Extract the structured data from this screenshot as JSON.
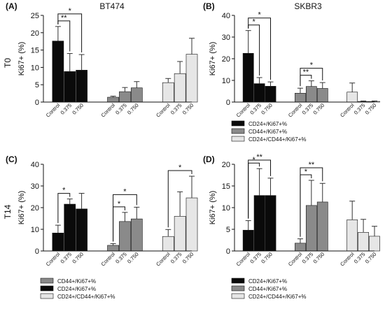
{
  "row_labels": [
    "T0",
    "T14"
  ],
  "colors": {
    "CD24+/Ki67+%": "#0a0a0a",
    "CD44+/Ki67+%": "#8a8a8a",
    "CD24+/CD44+/Ki67+%": "#e6e6e6",
    "axis": "#111111"
  },
  "chart_data": [
    {
      "panel": "(A)",
      "title": "BT474",
      "type": "bar",
      "ylabel": "Ki67+ (%)",
      "ylim": [
        0,
        25
      ],
      "yticks": [
        0,
        5,
        10,
        15,
        20,
        25
      ],
      "groups": [
        {
          "series": "CD24+/Ki67+%",
          "categories": [
            "Control",
            "0.375",
            "0.750"
          ],
          "values": [
            17.6,
            8.8,
            9.2
          ],
          "errors": [
            4.2,
            5.2,
            4.5
          ]
        },
        {
          "series": "CD44+/Ki67+%",
          "categories": [
            "Control",
            "0.375",
            "0.750"
          ],
          "values": [
            1.4,
            3.0,
            4.1
          ],
          "errors": [
            0.3,
            1.2,
            1.8
          ]
        },
        {
          "series": "CD24+/CD44+/Ki67+%",
          "categories": [
            "Control",
            "0.375",
            "0.750"
          ],
          "values": [
            5.6,
            8.2,
            13.8
          ],
          "errors": [
            1.2,
            3.5,
            4.6
          ]
        }
      ],
      "significance": [
        {
          "group": 0,
          "from": 0,
          "to": 1,
          "label": "**"
        },
        {
          "group": 0,
          "from": 0,
          "to": 2,
          "label": "*"
        }
      ],
      "legend": []
    },
    {
      "panel": "(B)",
      "title": "SKBR3",
      "type": "bar",
      "ylabel": "Ki67+ (%)",
      "ylim": [
        0,
        40
      ],
      "yticks": [
        0,
        10,
        20,
        30,
        40
      ],
      "groups": [
        {
          "series": "CD24+/Ki67+%",
          "categories": [
            "Control",
            "0.375",
            "0.750"
          ],
          "values": [
            22.5,
            8.5,
            7.3
          ],
          "errors": [
            10.5,
            2.8,
            2.0
          ]
        },
        {
          "series": "CD44+/Ki67+%",
          "categories": [
            "Control",
            "0.375",
            "0.750"
          ],
          "values": [
            4.1,
            7.2,
            6.3
          ],
          "errors": [
            2.3,
            2.6,
            2.7
          ]
        },
        {
          "series": "CD24+/CD44+/Ki67+%",
          "categories": [
            "Control",
            "0.375",
            "0.750"
          ],
          "values": [
            4.6,
            0.3,
            0.3
          ],
          "errors": [
            4.2,
            0.2,
            0.2
          ]
        }
      ],
      "significance": [
        {
          "group": 0,
          "from": 0,
          "to": 1,
          "label": "*"
        },
        {
          "group": 0,
          "from": 0,
          "to": 2,
          "label": "*"
        },
        {
          "group": 1,
          "from": 0,
          "to": 1,
          "label": "**"
        },
        {
          "group": 1,
          "from": 0,
          "to": 2,
          "label": "*"
        }
      ],
      "legend": [
        "CD24+/Ki67+%",
        "CD44+/Ki67+%",
        "CD24+/CD44+/Ki67+%"
      ]
    },
    {
      "panel": "(C)",
      "title": "",
      "type": "bar",
      "ylabel": "Ki67+ (%)",
      "ylim": [
        0,
        40
      ],
      "yticks": [
        0,
        10,
        20,
        30,
        40
      ],
      "groups": [
        {
          "series": "CD24+/Ki67+%",
          "categories": [
            "Control",
            "0.375",
            "0.750"
          ],
          "values": [
            8.3,
            21.6,
            19.4
          ],
          "errors": [
            3.6,
            2.4,
            7.2
          ]
        },
        {
          "series": "CD44+/Ki67+%",
          "categories": [
            "Control",
            "0.375",
            "0.750"
          ],
          "values": [
            2.6,
            13.6,
            14.8
          ],
          "errors": [
            0.8,
            4.2,
            5.4
          ]
        },
        {
          "series": "CD24+/CD44+/Ki67+%",
          "categories": [
            "Control",
            "0.375",
            "0.750"
          ],
          "values": [
            6.7,
            16.0,
            24.5
          ],
          "errors": [
            3.2,
            11.3,
            10.0
          ]
        }
      ],
      "significance": [
        {
          "group": 0,
          "from": 0,
          "to": 1,
          "label": "*"
        },
        {
          "group": 1,
          "from": 0,
          "to": 1,
          "label": "*"
        },
        {
          "group": 1,
          "from": 0,
          "to": 2,
          "label": "*"
        },
        {
          "group": 2,
          "from": 0,
          "to": 2,
          "label": "*"
        }
      ],
      "legend": [
        "CD44+/Ki67+%",
        "CD24+/Ki67+%",
        "CD24+/CD44+/Ki67+%"
      ]
    },
    {
      "panel": "(D)",
      "title": "",
      "type": "bar",
      "ylabel": "Ki67+ (%)",
      "ylim": [
        0,
        20
      ],
      "yticks": [
        0,
        5,
        10,
        15,
        20
      ],
      "groups": [
        {
          "series": "CD24+/Ki67+%",
          "categories": [
            "Control",
            "0.375",
            "0.750"
          ],
          "values": [
            4.8,
            12.8,
            12.8
          ],
          "errors": [
            2.2,
            6.2,
            4.0
          ]
        },
        {
          "series": "CD44+/Ki67+%",
          "categories": [
            "Control",
            "0.375",
            "0.750"
          ],
          "values": [
            1.8,
            10.5,
            11.3
          ],
          "errors": [
            1.0,
            5.8,
            4.3
          ]
        },
        {
          "series": "CD24+/CD44+/Ki67+%",
          "categories": [
            "Control",
            "0.375",
            "0.750"
          ],
          "values": [
            7.2,
            4.3,
            3.4
          ],
          "errors": [
            4.3,
            3.0,
            2.3
          ]
        }
      ],
      "significance": [
        {
          "group": 0,
          "from": 0,
          "to": 1,
          "label": "*"
        },
        {
          "group": 0,
          "from": 0,
          "to": 2,
          "label": "**"
        },
        {
          "group": 1,
          "from": 0,
          "to": 1,
          "label": "*"
        },
        {
          "group": 1,
          "from": 0,
          "to": 2,
          "label": "**"
        }
      ],
      "legend": [
        "CD24+/Ki67+%",
        "CD44+/Ki67+%",
        "CD24+/CD44+/Ki67+%"
      ]
    }
  ]
}
